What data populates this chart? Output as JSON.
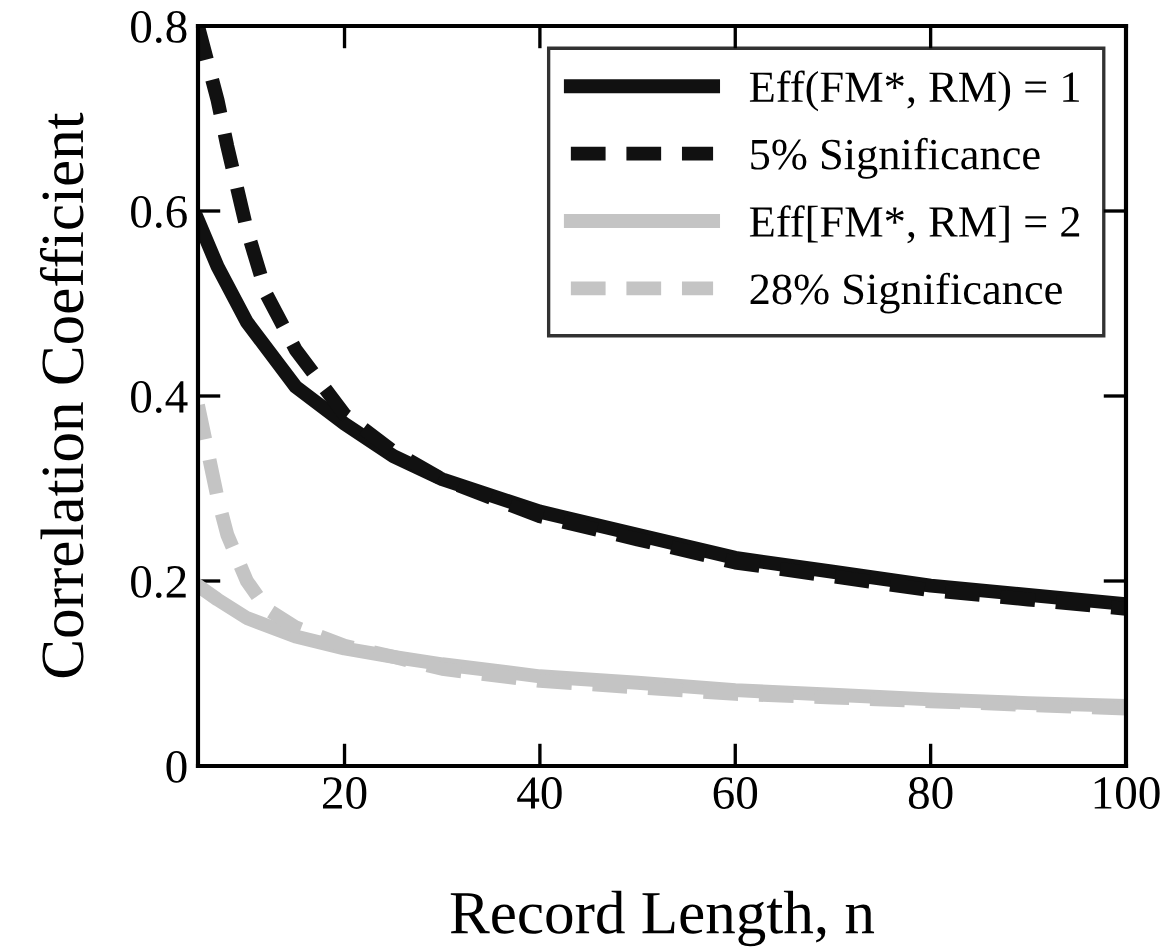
{
  "chart_data": {
    "type": "line",
    "xlabel": "Record Length, n",
    "ylabel": "Correlation Coefficient",
    "xlim": [
      5,
      100
    ],
    "ylim": [
      0,
      0.8
    ],
    "xticks": [
      20,
      40,
      60,
      80,
      100
    ],
    "yticks": [
      0,
      0.2,
      0.4,
      0.6,
      0.8
    ],
    "grid": false,
    "legend": "top right",
    "series": [
      {
        "name": "Eff(FM*, RM) = 1",
        "color": "#111111",
        "line_style": "solid",
        "x": [
          5,
          7,
          10,
          15,
          20,
          25,
          30,
          40,
          50,
          60,
          70,
          80,
          90,
          100
        ],
        "values": [
          0.59,
          0.54,
          0.48,
          0.41,
          0.37,
          0.335,
          0.31,
          0.275,
          0.25,
          0.225,
          0.21,
          0.195,
          0.185,
          0.175
        ]
      },
      {
        "name": "5% Significance",
        "color": "#111111",
        "line_style": "dashed",
        "x": [
          5,
          6,
          7,
          8,
          10,
          12,
          15,
          20,
          25,
          30,
          40,
          50,
          60,
          70,
          80,
          90,
          100
        ],
        "values": [
          0.8,
          0.76,
          0.72,
          0.67,
          0.58,
          0.51,
          0.45,
          0.38,
          0.34,
          0.31,
          0.27,
          0.245,
          0.22,
          0.205,
          0.19,
          0.18,
          0.17
        ]
      },
      {
        "name": "Eff[FM*, RM] = 2",
        "color": "#c4c4c4",
        "line_style": "solid",
        "x": [
          5,
          7,
          10,
          15,
          20,
          25,
          30,
          40,
          50,
          60,
          70,
          80,
          90,
          100
        ],
        "values": [
          0.195,
          0.18,
          0.16,
          0.14,
          0.127,
          0.118,
          0.11,
          0.097,
          0.09,
          0.082,
          0.077,
          0.072,
          0.068,
          0.065
        ]
      },
      {
        "name": "28% Significance",
        "color": "#c4c4c4",
        "line_style": "dashed",
        "x": [
          5,
          6,
          7,
          8,
          10,
          12,
          15,
          20,
          25,
          30,
          40,
          50,
          60,
          70,
          80,
          90,
          100
        ],
        "values": [
          0.39,
          0.34,
          0.29,
          0.25,
          0.2,
          0.17,
          0.15,
          0.13,
          0.118,
          0.105,
          0.092,
          0.085,
          0.078,
          0.074,
          0.07,
          0.066,
          0.062
        ]
      }
    ]
  }
}
